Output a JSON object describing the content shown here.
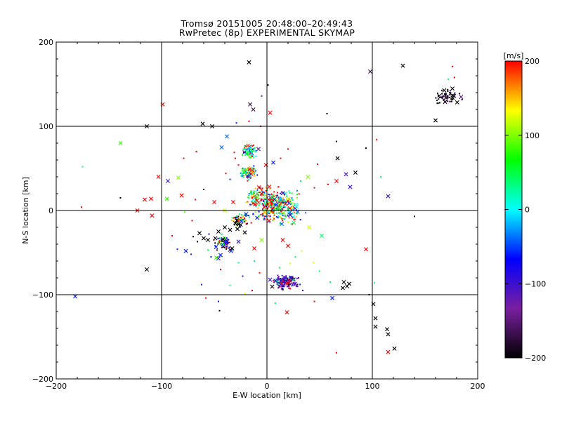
{
  "chart_data": {
    "type": "scatter",
    "title": "Tromsø 20151005 20:48:00–20:49:43",
    "subtitle": "RwPretec (8p) EXPERIMENTAL SKYMAP",
    "xlabel": "E-W location [km]",
    "ylabel": "N-S location [km]",
    "xlim": [
      -200,
      200
    ],
    "ylim": [
      -200,
      200
    ],
    "x_ticks": [
      -200,
      -100,
      0,
      100,
      200
    ],
    "y_ticks": [
      -200,
      -100,
      0,
      100,
      200
    ],
    "grid": true,
    "colorbar": {
      "label": "[m/s]",
      "range": [
        -200,
        200
      ],
      "ticks": [
        -200,
        -100,
        0,
        100,
        200
      ],
      "colormap": [
        "#000000",
        "#7a1fa0",
        "#0000ff",
        "#00ffff",
        "#00ff00",
        "#ffff00",
        "#ff0000"
      ]
    },
    "series": [
      {
        "marker": "x",
        "points": [
          [
            -17,
            176,
            -200
          ],
          [
            98,
            165,
            -170
          ],
          [
            129,
            172,
            -200
          ],
          [
            -16,
            126,
            -170
          ],
          [
            -99,
            126,
            200
          ],
          [
            -13,
            120,
            -170
          ],
          [
            3,
            116,
            200
          ],
          [
            -114,
            100,
            -200
          ],
          [
            -61,
            103,
            -200
          ],
          [
            -52,
            100,
            -200
          ],
          [
            -38,
            88,
            -40
          ],
          [
            -139,
            80,
            80
          ],
          [
            -43,
            75,
            -40
          ],
          [
            -18,
            77,
            180
          ],
          [
            -8,
            73,
            -120
          ],
          [
            6,
            57,
            -60
          ],
          [
            -1,
            54,
            200
          ],
          [
            -22,
            46,
            50
          ],
          [
            -13,
            45,
            150
          ],
          [
            67,
            62,
            -200
          ],
          [
            75,
            43,
            -100
          ],
          [
            84,
            45,
            -200
          ],
          [
            79,
            28,
            -100
          ],
          [
            39,
            40,
            100
          ],
          [
            66,
            35,
            200
          ],
          [
            115,
            17,
            -100
          ],
          [
            -103,
            40,
            200
          ],
          [
            -94,
            35,
            -100
          ],
          [
            -84,
            39,
            100
          ],
          [
            -81,
            18,
            200
          ],
          [
            -116,
            13,
            200
          ],
          [
            -110,
            14,
            200
          ],
          [
            -95,
            14,
            80
          ],
          [
            -123,
            0,
            200
          ],
          [
            -109,
            -6,
            200
          ],
          [
            -50,
            10,
            200
          ],
          [
            -40,
            0,
            120
          ],
          [
            -32,
            10,
            200
          ],
          [
            -64,
            -27,
            -200
          ],
          [
            -60,
            -33,
            -200
          ],
          [
            -56,
            -35,
            -200
          ],
          [
            -49,
            -33,
            -200
          ],
          [
            -46,
            -25,
            -200
          ],
          [
            -40,
            -20,
            -200
          ],
          [
            -35,
            -23,
            -200
          ],
          [
            -30,
            -15,
            -200
          ],
          [
            -28,
            -22,
            -200
          ],
          [
            -25,
            -17,
            -200
          ],
          [
            -21,
            -26,
            -200
          ],
          [
            -38,
            -37,
            -60
          ],
          [
            -34,
            -48,
            -60
          ],
          [
            -44,
            -53,
            -60
          ],
          [
            -46,
            -57,
            -100
          ],
          [
            -33,
            -45,
            -200
          ],
          [
            -27,
            -37,
            -100
          ],
          [
            -48,
            -56,
            80
          ],
          [
            -77,
            -48,
            -60
          ],
          [
            -114,
            -70,
            -200
          ],
          [
            -182,
            -102,
            -60
          ],
          [
            -12,
            -45,
            200
          ],
          [
            -5,
            -35,
            100
          ],
          [
            15,
            -35,
            200
          ],
          [
            40,
            -20,
            120
          ],
          [
            52,
            -30,
            40
          ],
          [
            20,
            -42,
            200
          ],
          [
            94,
            -46,
            200
          ],
          [
            62,
            -104,
            -60
          ],
          [
            19,
            -121,
            200
          ],
          [
            78,
            -87,
            -200
          ],
          [
            72,
            -92,
            -200
          ],
          [
            73,
            -85,
            -200
          ],
          [
            76,
            -90,
            -200
          ],
          [
            101,
            -111,
            -200
          ],
          [
            103,
            -128,
            -200
          ],
          [
            103,
            -138,
            -200
          ],
          [
            114,
            -141,
            -200
          ],
          [
            115,
            -147,
            -200
          ],
          [
            121,
            -164,
            -200
          ],
          [
            115,
            -168,
            200
          ],
          [
            160,
            107,
            -200
          ],
          [
            169,
            129,
            -200
          ],
          [
            9,
            7,
            -60
          ],
          [
            16,
            -3,
            100
          ],
          [
            20,
            14,
            120
          ],
          [
            2,
            -12,
            200
          ],
          [
            -5,
            20,
            200
          ],
          [
            11,
            3,
            50
          ]
        ]
      },
      {
        "marker": "dot",
        "points": [
          [
            -175,
            52,
            40
          ],
          [
            -176,
            4,
            200
          ],
          [
            -123,
            0,
            200
          ],
          [
            -79,
            62,
            200
          ],
          [
            -78,
            -2,
            80
          ],
          [
            -67,
            70,
            200
          ],
          [
            -31,
            69,
            200
          ],
          [
            -30,
            62,
            200
          ],
          [
            -27,
            54,
            200
          ],
          [
            -39,
            44,
            200
          ],
          [
            -35,
            37,
            -60
          ],
          [
            -56,
            -47,
            40
          ],
          [
            -53,
            -55,
            -60
          ],
          [
            -62,
            -88,
            -60
          ],
          [
            -46,
            -108,
            -60
          ],
          [
            -58,
            -104,
            200
          ],
          [
            -45,
            -119,
            -200
          ],
          [
            -44,
            -70,
            200
          ],
          [
            -35,
            -89,
            40
          ],
          [
            -23,
            -78,
            -60
          ],
          [
            -21,
            -99,
            120
          ],
          [
            -14,
            -95,
            200
          ],
          [
            -7,
            -74,
            200
          ],
          [
            1,
            149,
            -200
          ],
          [
            -5,
            136,
            -120
          ],
          [
            57,
            115,
            -200
          ],
          [
            66,
            82,
            -200
          ],
          [
            94,
            74,
            -200
          ],
          [
            104,
            84,
            200
          ],
          [
            108,
            40,
            40
          ],
          [
            58,
            31,
            200
          ],
          [
            48,
            55,
            200
          ],
          [
            140,
            -7,
            -200
          ],
          [
            28,
            -90,
            -100
          ],
          [
            34,
            -95,
            -100
          ],
          [
            45,
            -108,
            200
          ],
          [
            66,
            -169,
            200
          ],
          [
            102,
            -86,
            40
          ],
          [
            97,
            -100,
            -200
          ],
          [
            60,
            -85,
            40
          ],
          [
            50,
            -72,
            40
          ],
          [
            44,
            -62,
            120
          ],
          [
            33,
            -48,
            120
          ],
          [
            27,
            -55,
            40
          ],
          [
            22,
            -63,
            120
          ],
          [
            -70,
            -31,
            -200
          ],
          [
            -66,
            -37,
            -200
          ],
          [
            -90,
            -30,
            200
          ],
          [
            -85,
            -46,
            -60
          ],
          [
            -72,
            -52,
            -100
          ],
          [
            -68,
            13,
            200
          ],
          [
            -60,
            25,
            -200
          ],
          [
            -29,
            104,
            -60
          ],
          [
            -17,
            106,
            200
          ],
          [
            -6,
            100,
            200
          ],
          [
            13,
            62,
            200
          ],
          [
            20,
            73,
            200
          ],
          [
            32,
            35,
            40
          ],
          [
            45,
            27,
            200
          ],
          [
            -139,
            15,
            -200
          ],
          [
            -71,
            -12,
            200
          ],
          [
            -55,
            -28,
            -60
          ],
          [
            -49,
            -42,
            -60
          ],
          [
            -27,
            -62,
            40
          ],
          [
            -12,
            -60,
            40
          ],
          [
            12,
            -68,
            40
          ],
          [
            8,
            -110,
            40
          ],
          [
            30,
            -80,
            -100
          ],
          [
            172,
            156,
            40
          ],
          [
            176,
            171,
            200
          ],
          [
            178,
            158,
            200
          ]
        ]
      }
    ],
    "clusters": [
      {
        "center": [
          8,
          5
        ],
        "spread": [
          26,
          24
        ],
        "count": 340,
        "values": [
          200,
          200,
          200,
          150,
          100,
          60,
          40,
          40,
          20,
          0,
          -40,
          -60,
          -80,
          120,
          180,
          200
        ]
      },
      {
        "center": [
          -17,
          70
        ],
        "spread": [
          8,
          8
        ],
        "count": 70,
        "values": [
          40,
          20,
          60,
          0,
          -40,
          200,
          100,
          -60,
          40
        ]
      },
      {
        "center": [
          -17,
          45
        ],
        "spread": [
          8,
          9
        ],
        "count": 80,
        "values": [
          -40,
          -60,
          40,
          100,
          200,
          150,
          20,
          -20
        ]
      },
      {
        "center": [
          -10,
          20
        ],
        "spread": [
          9,
          9
        ],
        "count": 50,
        "values": [
          200,
          150,
          80,
          200,
          -40,
          40
        ]
      },
      {
        "center": [
          18,
          -85
        ],
        "spread": [
          14,
          9
        ],
        "count": 160,
        "values": [
          -110,
          -120,
          -100,
          -140,
          -90,
          -200,
          -60,
          40,
          200
        ]
      },
      {
        "center": [
          -42,
          -38
        ],
        "spread": [
          9,
          10
        ],
        "count": 60,
        "values": [
          -200,
          -170,
          -60,
          -100,
          40,
          200,
          80
        ]
      },
      {
        "center": [
          172,
          135
        ],
        "spread": [
          15,
          10
        ],
        "count": 60,
        "values": [
          -200,
          -200,
          -200,
          -180,
          -150
        ]
      },
      {
        "center": [
          -25,
          -10
        ],
        "spread": [
          10,
          10
        ],
        "count": 60,
        "values": [
          200,
          150,
          100,
          -60,
          40,
          -200
        ]
      }
    ]
  }
}
